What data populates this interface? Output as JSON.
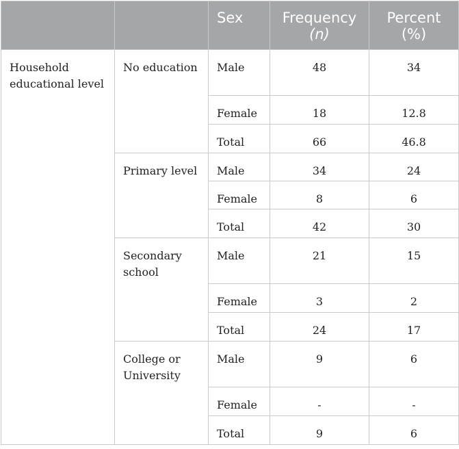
{
  "table": {
    "headers": {
      "col1": "",
      "col2": "",
      "sex": "Sex",
      "frequency": "Frequency",
      "frequency_unit": "(n)",
      "percent": "Percent",
      "percent_unit": "(%)"
    },
    "variable": "Household educational level",
    "groups": [
      {
        "level": "No education",
        "rows": [
          {
            "sex": "Male",
            "frequency": "48",
            "percent": "34"
          },
          {
            "sex": "Female",
            "frequency": "18",
            "percent": "12.8"
          },
          {
            "sex": "Total",
            "frequency": "66",
            "percent": "46.8"
          }
        ]
      },
      {
        "level": "Primary level",
        "rows": [
          {
            "sex": "Male",
            "frequency": "34",
            "percent": "24"
          },
          {
            "sex": "Female",
            "frequency": "8",
            "percent": "6"
          },
          {
            "sex": "Total",
            "frequency": "42",
            "percent": "30"
          }
        ]
      },
      {
        "level": "Secondary school",
        "rows": [
          {
            "sex": "Male",
            "frequency": "21",
            "percent": "15"
          },
          {
            "sex": "Female",
            "frequency": "3",
            "percent": "2"
          },
          {
            "sex": "Total",
            "frequency": "24",
            "percent": "17"
          }
        ]
      },
      {
        "level": "College or University",
        "rows": [
          {
            "sex": "Male",
            "frequency": "9",
            "percent": "6"
          },
          {
            "sex": "Female",
            "frequency": "-",
            "percent": "-"
          },
          {
            "sex": "Total",
            "frequency": "9",
            "percent": "6"
          }
        ]
      }
    ]
  }
}
